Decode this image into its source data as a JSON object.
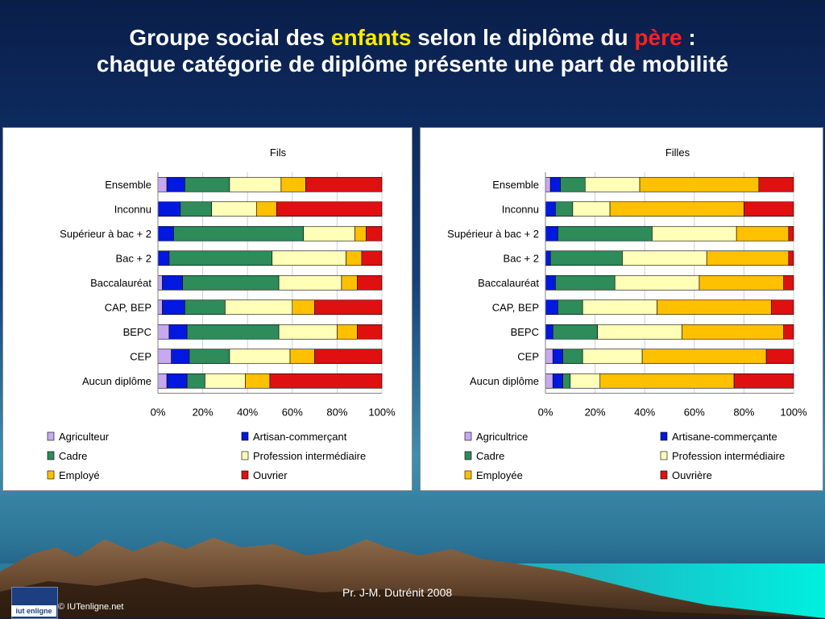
{
  "title": {
    "part1": "Groupe social des ",
    "highlight1": "enfants",
    "part2": " selon le diplôme du ",
    "highlight2": "père",
    "part3": " :",
    "line2": "chaque catégorie de diplôme présente une part de mobilité"
  },
  "footer": {
    "author": "Pr.  J-M. Dutrénit  2008",
    "copyright": "© IUTenligne.net",
    "logo_text": "iut enligne"
  },
  "colors": {
    "agriculteur": "#c8a8f0",
    "artisan": "#0018e0",
    "cadre": "#2e8b5a",
    "profession": "#ffffb8",
    "employe": "#ffc000",
    "ouvrier": "#e01010",
    "bar_bg": "#bdbdbd"
  },
  "chart_data": [
    {
      "type": "bar",
      "orientation": "horizontal",
      "stacked": true,
      "title": "Fils",
      "categories": [
        "Ensemble",
        "Inconnu",
        "Supérieur à bac + 2",
        "Bac + 2",
        "Baccalauréat",
        "CAP, BEP",
        "BEPC",
        "CEP",
        "Aucun diplôme"
      ],
      "xticks": [
        "0%",
        "20%",
        "40%",
        "60%",
        "80%",
        "100%"
      ],
      "xlim": [
        0,
        100
      ],
      "grid": true,
      "legend": "bottom",
      "series": [
        {
          "name": "Agriculteur",
          "values": [
            4,
            0,
            0,
            0,
            2,
            2,
            5,
            6,
            4
          ]
        },
        {
          "name": "Artisan-commerçant",
          "values": [
            8,
            10,
            7,
            5,
            9,
            10,
            8,
            8,
            9
          ]
        },
        {
          "name": "Cadre",
          "values": [
            20,
            14,
            58,
            46,
            43,
            18,
            41,
            18,
            8
          ]
        },
        {
          "name": "Profession intermédiaire",
          "values": [
            23,
            20,
            23,
            33,
            28,
            30,
            26,
            27,
            18
          ]
        },
        {
          "name": "Employé",
          "values": [
            11,
            9,
            5,
            7,
            7,
            10,
            9,
            11,
            11
          ]
        },
        {
          "name": "Ouvrier",
          "values": [
            34,
            47,
            7,
            9,
            11,
            30,
            11,
            30,
            50
          ]
        }
      ]
    },
    {
      "type": "bar",
      "orientation": "horizontal",
      "stacked": true,
      "title": "Filles",
      "categories": [
        "Ensemble",
        "Inconnu",
        "Supérieur à bac + 2",
        "Bac + 2",
        "Baccalauréat",
        "CAP, BEP",
        "BEPC",
        "CEP",
        "Aucun diplôme"
      ],
      "xticks": [
        "0%",
        "20%",
        "40%",
        "60%",
        "80%",
        "100%"
      ],
      "xlim": [
        0,
        100
      ],
      "grid": true,
      "legend": "bottom",
      "series": [
        {
          "name": "Agricultrice",
          "values": [
            2,
            0,
            0,
            0,
            0,
            0,
            0,
            3,
            3
          ]
        },
        {
          "name": "Artisane-commerçante",
          "values": [
            4,
            4,
            5,
            2,
            4,
            5,
            3,
            4,
            4
          ]
        },
        {
          "name": "Cadre",
          "values": [
            10,
            7,
            38,
            29,
            24,
            10,
            18,
            8,
            3
          ]
        },
        {
          "name": "Profession intermédiaire",
          "values": [
            22,
            15,
            34,
            34,
            34,
            30,
            34,
            24,
            12
          ]
        },
        {
          "name": "Employée",
          "values": [
            48,
            54,
            21,
            33,
            34,
            46,
            41,
            50,
            54
          ]
        },
        {
          "name": "Ouvrière",
          "values": [
            14,
            20,
            2,
            2,
            4,
            9,
            4,
            11,
            24
          ]
        }
      ]
    }
  ]
}
